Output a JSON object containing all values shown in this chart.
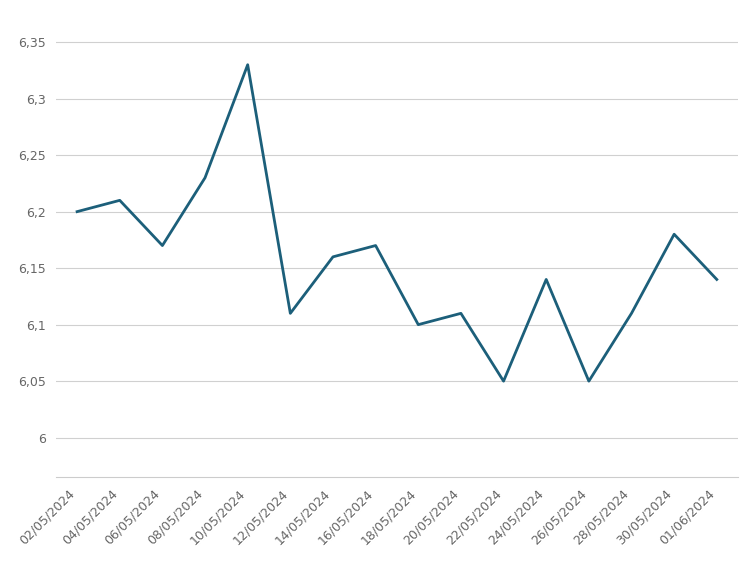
{
  "dates": [
    "02/05/2024",
    "04/05/2024",
    "06/05/2024",
    "08/05/2024",
    "10/05/2024",
    "12/05/2024",
    "14/05/2024",
    "16/05/2024",
    "18/05/2024",
    "20/05/2024",
    "22/05/2024",
    "24/05/2024",
    "26/05/2024",
    "28/05/2024",
    "30/05/2024",
    "01/06/2024"
  ],
  "values": [
    6.2,
    6.21,
    6.17,
    6.23,
    6.33,
    6.11,
    6.16,
    6.17,
    6.1,
    6.11,
    6.05,
    6.14,
    6.05,
    6.11,
    6.18,
    6.14
  ],
  "y_ticks": [
    6.0,
    6.05,
    6.1,
    6.15,
    6.2,
    6.25,
    6.3,
    6.35
  ],
  "ylim": [
    5.965,
    6.375
  ],
  "line_color": "#1c5f7a",
  "line_width": 2.0,
  "bg_color": "#ffffff",
  "grid_color": "#d0d0d0",
  "tick_label_fontsize": 9,
  "tick_label_color": "#666666"
}
